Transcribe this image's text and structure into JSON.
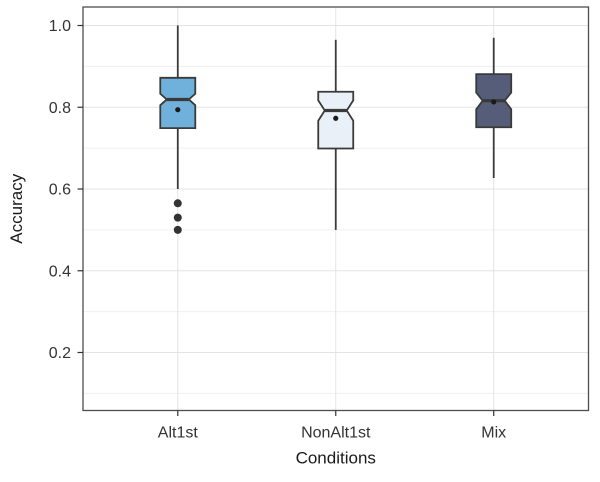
{
  "figure": {
    "background": "#ffffff"
  },
  "chart_data": {
    "type": "boxplot",
    "notched": true,
    "title": "",
    "xlabel": "Conditions",
    "ylabel": "Accuracy",
    "categories": [
      "Alt1st",
      "NonAlt1st",
      "Mix"
    ],
    "y_ticks": [
      {
        "value": 1.0,
        "label": "1.0"
      },
      {
        "value": 0.8,
        "label": "0.8"
      },
      {
        "value": 0.6,
        "label": "0.6"
      },
      {
        "value": 0.4,
        "label": "0.4"
      },
      {
        "value": 0.2,
        "label": "0.2"
      }
    ],
    "y_minor_ticks": [
      0.9,
      0.7,
      0.5,
      0.3,
      0.1
    ],
    "ylim": [
      0.05,
      1.04
    ],
    "grid": "on",
    "legend": "none",
    "series": [
      {
        "name": "Alt1st",
        "fill": "#6FB1DB",
        "whisker_high": 1.0,
        "q3": 0.872,
        "notch_high": 0.833,
        "median": 0.819,
        "notch_low": 0.805,
        "q1": 0.749,
        "whisker_low": 0.6,
        "mean": 0.794,
        "outliers": [
          0.565,
          0.53,
          0.5
        ]
      },
      {
        "name": "NonAlt1st",
        "fill": "#E9F0F7",
        "whisker_high": 0.965,
        "q3": 0.838,
        "notch_high": 0.817,
        "median": 0.792,
        "notch_low": 0.767,
        "q1": 0.699,
        "whisker_low": 0.5,
        "mean": 0.773,
        "outliers": []
      },
      {
        "name": "Mix",
        "fill": "#565D78",
        "whisker_high": 0.97,
        "q3": 0.881,
        "notch_high": 0.836,
        "median": 0.816,
        "notch_low": 0.795,
        "q1": 0.751,
        "whisker_low": 0.627,
        "mean": 0.813,
        "outliers": []
      }
    ],
    "colors": {
      "grid_major": "#E3E3E3",
      "grid_minor": "#F0F0F0",
      "panel_border": "#4D4D4D",
      "box_stroke": "#3A3A3A",
      "tick_mark": "#333333",
      "point": "#1A1A1A"
    }
  }
}
